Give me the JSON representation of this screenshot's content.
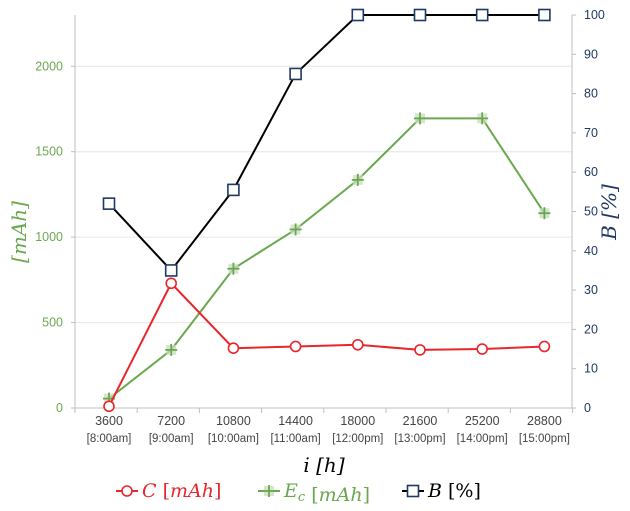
{
  "chart_data": {
    "type": "line",
    "x": [
      3600,
      7200,
      10800,
      14400,
      18000,
      21600,
      25200,
      28800
    ],
    "x_sublabels": [
      "[8:00am]",
      "[9:00am]",
      "[10:00am]",
      "[11:00am]",
      "[12:00pm]",
      "[13:00pm]",
      "[14:00pm]",
      "[15:00pm]"
    ],
    "xlabel": "i [h]",
    "ylabel_left": "[mAh]",
    "ylabel_right": "B [%]",
    "ylim_left": [
      0,
      2300
    ],
    "yticks_left": [
      0,
      500,
      1000,
      1500,
      2000
    ],
    "ylim_right": [
      0,
      100
    ],
    "yticks_right": [
      0,
      10,
      20,
      30,
      40,
      50,
      60,
      70,
      80,
      90,
      100
    ],
    "grid": true,
    "legend_position": "bottom",
    "series": [
      {
        "name": "C [mAh]",
        "axis": "left",
        "color": "#e8262b",
        "marker": "circle",
        "values": [
          10,
          730,
          350,
          360,
          370,
          340,
          345,
          360
        ]
      },
      {
        "name": "E_c [mAh]",
        "axis": "left",
        "color": "#6aa84f",
        "marker": "plus",
        "values": [
          55,
          340,
          815,
          1045,
          1335,
          1695,
          1695,
          1140
        ]
      },
      {
        "name": "B [%]",
        "axis": "right",
        "color": "#000000",
        "marker": "square",
        "values": [
          52,
          35,
          55.5,
          85,
          100,
          100,
          100,
          100
        ]
      }
    ]
  }
}
